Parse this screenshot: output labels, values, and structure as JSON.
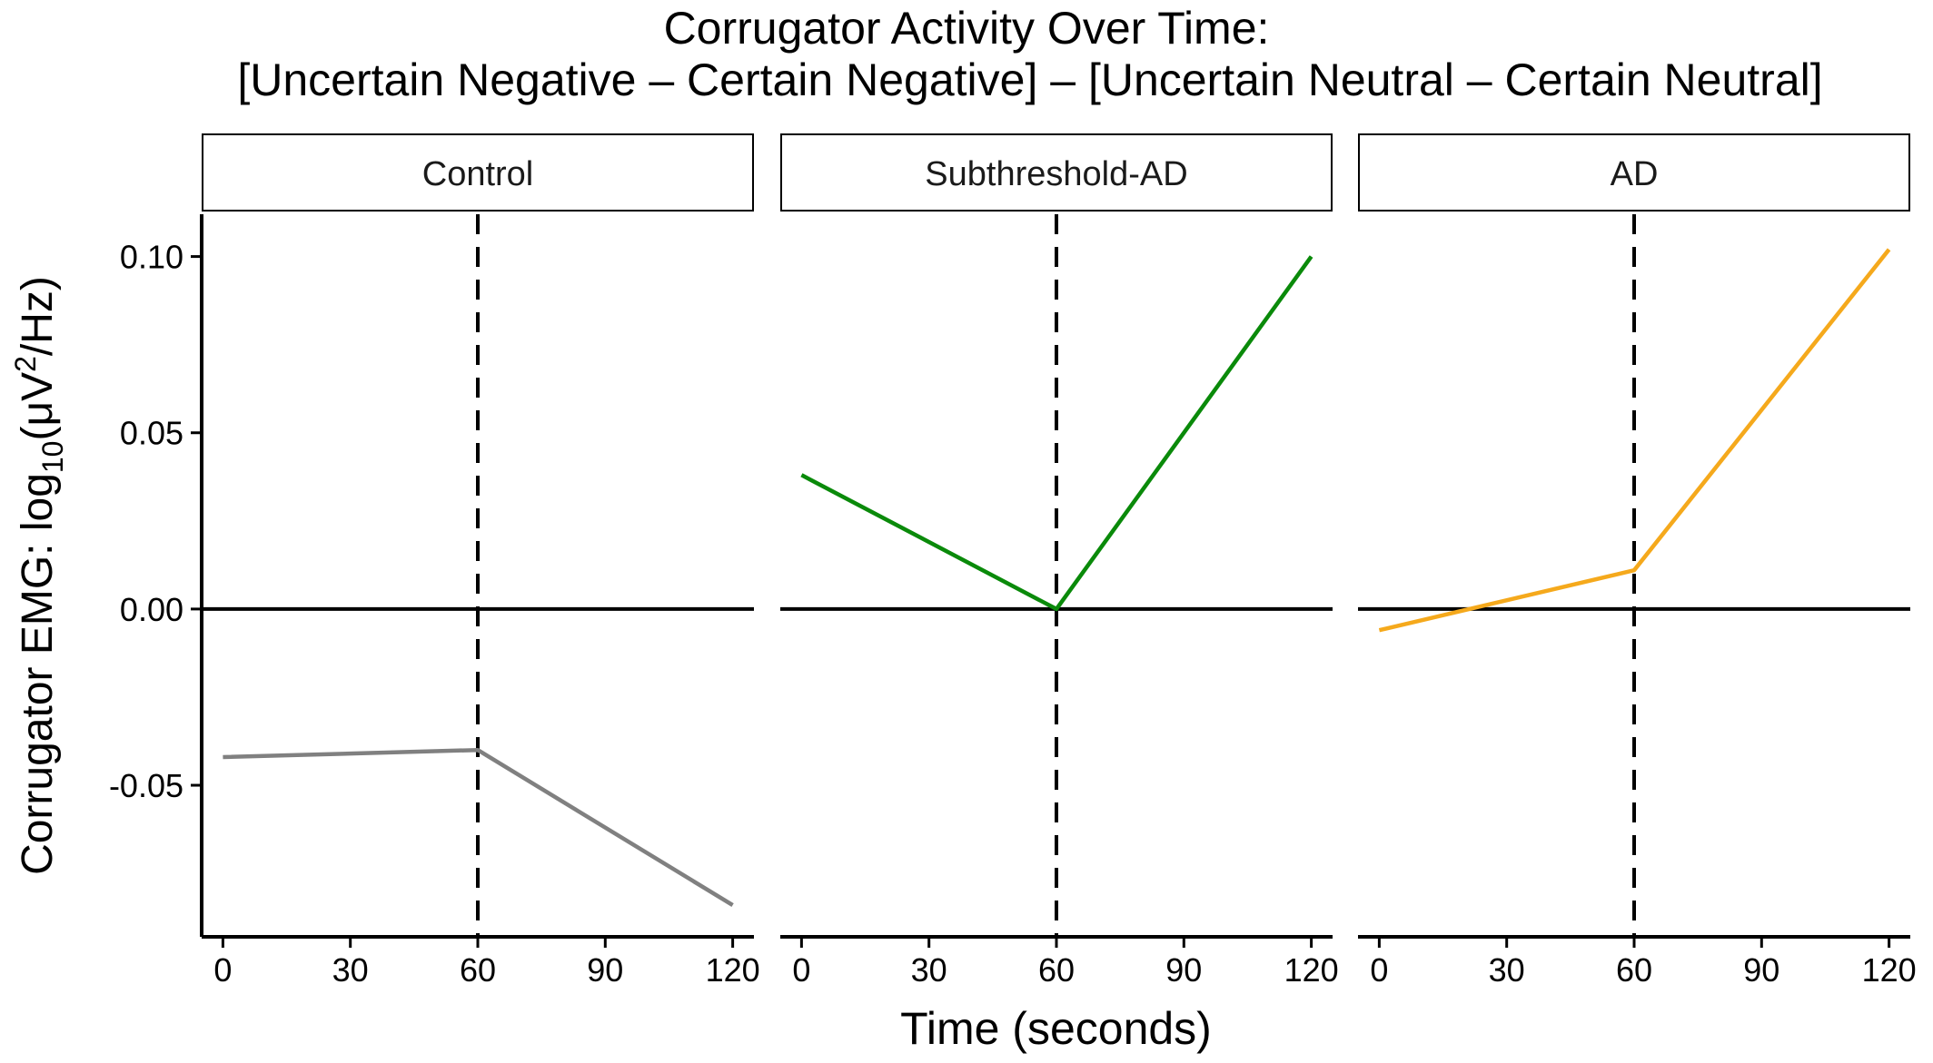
{
  "chart_data": {
    "type": "line",
    "title": "Corrugator Activity Over Time:",
    "subtitle": "[Uncertain Negative – Certain Negative] – [Uncertain Neutral – Certain Neutral]",
    "xlabel": "Time (seconds)",
    "ylabel": {
      "prefix": "Corrugator EMG: log",
      "subscript": "10",
      "mid": "(μV",
      "superscript": "2",
      "suffix": "/Hz)"
    },
    "x_ticks": [
      0,
      30,
      60,
      90,
      120
    ],
    "y_ticks": [
      0.1,
      0.05,
      0.0,
      -0.05
    ],
    "y_tick_labels": [
      "0.10",
      "0.05",
      "0.00",
      "-0.05"
    ],
    "xlim": [
      -5,
      125
    ],
    "ylim": [
      -0.093,
      0.112
    ],
    "reference_lines": {
      "vertical_dashed_x": 60,
      "horizontal_solid_y": 0
    },
    "grid": false,
    "legend": "none",
    "panels": [
      {
        "label": "Control",
        "color": "#808080",
        "x": [
          0,
          60,
          120
        ],
        "y": [
          -0.042,
          -0.04,
          -0.084
        ]
      },
      {
        "label": "Subthreshold-AD",
        "color": "#0a8a0a",
        "x": [
          0,
          60,
          120
        ],
        "y": [
          0.038,
          0.0,
          0.1
        ]
      },
      {
        "label": "AD",
        "color": "#f5a91c",
        "x": [
          0,
          60,
          120
        ],
        "y": [
          -0.006,
          0.011,
          0.102
        ]
      }
    ]
  }
}
